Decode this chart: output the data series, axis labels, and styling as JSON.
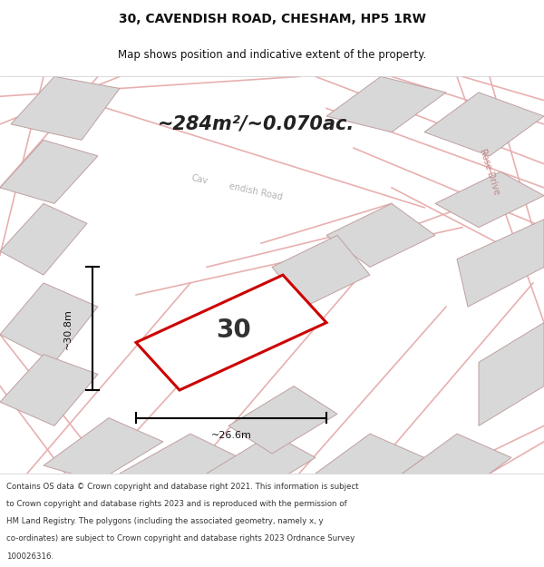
{
  "title_line1": "30, CAVENDISH ROAD, CHESHAM, HP5 1RW",
  "title_line2": "Map shows position and indicative extent of the property.",
  "area_text": "~284m²/~0.070ac.",
  "property_number": "30",
  "dim_vertical": "~30.8m",
  "dim_horizontal": "~26.6m",
  "road_label_1": "Cave",
  "road_label_2": "ndish Road",
  "road2_label": "Rose Drive",
  "footer_lines": [
    "Contains OS data © Crown copyright and database right 2021. This information is subject",
    "to Crown copyright and database rights 2023 and is reproduced with the permission of",
    "HM Land Registry. The polygons (including the associated geometry, namely x, y",
    "co-ordinates) are subject to Crown copyright and database rights 2023 Ordnance Survey",
    "100026316."
  ],
  "map_bg": "#f0eeee",
  "property_fill": "#ffffff",
  "property_edge": "#cc0000",
  "neighbor_fill": "#d8d8d8",
  "neighbor_edge": "#c0a0a0",
  "road_color": "#e8b0b0",
  "white": "#ffffff"
}
